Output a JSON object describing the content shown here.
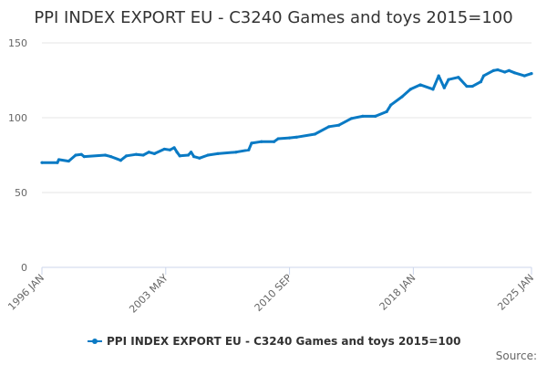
{
  "chart_data": {
    "type": "line",
    "title": "PPI INDEX EXPORT EU - C3240 Games and toys 2015=100",
    "xlabel": "",
    "ylabel": "",
    "ylim": [
      0,
      150
    ],
    "yticks": [
      0,
      50,
      100,
      150
    ],
    "xlim": [
      "1996-01",
      "2025-01"
    ],
    "xticks": [
      {
        "date": "1996-01",
        "label": "1996 JAN"
      },
      {
        "date": "2003-05",
        "label": "2003 MAY"
      },
      {
        "date": "2010-09",
        "label": "2010 SEP"
      },
      {
        "date": "2018-01",
        "label": "2018 JAN"
      },
      {
        "date": "2025-01",
        "label": "2025 JAN"
      }
    ],
    "grid": true,
    "legend_position": "bottom",
    "series": [
      {
        "name": "PPI INDEX EXPORT EU - C3240 Games and toys 2015=100",
        "color": "#0a7ac4",
        "points": [
          [
            "1996-01",
            70
          ],
          [
            "1996-12",
            70
          ],
          [
            "1997-01",
            72
          ],
          [
            "1997-08",
            71
          ],
          [
            "1998-01",
            75
          ],
          [
            "1998-05",
            75.5
          ],
          [
            "1998-07",
            74
          ],
          [
            "1999-10",
            75
          ],
          [
            "2000-02",
            74
          ],
          [
            "2000-09",
            71.5
          ],
          [
            "2001-01",
            74.5
          ],
          [
            "2001-08",
            75.5
          ],
          [
            "2002-01",
            75
          ],
          [
            "2002-05",
            77
          ],
          [
            "2002-09",
            76
          ],
          [
            "2003-04",
            79
          ],
          [
            "2003-08",
            78.5
          ],
          [
            "2003-11",
            80
          ],
          [
            "2004-01",
            77
          ],
          [
            "2004-03",
            74.5
          ],
          [
            "2004-09",
            75
          ],
          [
            "2004-11",
            77
          ],
          [
            "2005-01",
            74
          ],
          [
            "2005-05",
            73
          ],
          [
            "2005-11",
            75
          ],
          [
            "2006-06",
            76
          ],
          [
            "2007-07",
            77
          ],
          [
            "2008-04",
            78.5
          ],
          [
            "2008-06",
            83
          ],
          [
            "2009-01",
            84
          ],
          [
            "2009-10",
            84
          ],
          [
            "2010-01",
            86
          ],
          [
            "2010-09",
            86.5
          ],
          [
            "2011-02",
            87
          ],
          [
            "2012-03",
            89
          ],
          [
            "2013-01",
            94
          ],
          [
            "2013-08",
            95
          ],
          [
            "2014-05",
            99.5
          ],
          [
            "2015-01",
            101
          ],
          [
            "2015-10",
            101
          ],
          [
            "2016-06",
            104
          ],
          [
            "2016-09",
            108.5
          ],
          [
            "2017-05",
            114
          ],
          [
            "2017-11",
            119
          ],
          [
            "2018-06",
            122
          ],
          [
            "2019-03",
            119
          ],
          [
            "2019-07",
            128
          ],
          [
            "2019-11",
            120
          ],
          [
            "2020-02",
            125.5
          ],
          [
            "2020-09",
            127
          ],
          [
            "2021-03",
            121
          ],
          [
            "2021-07",
            121
          ],
          [
            "2022-01",
            124
          ],
          [
            "2022-03",
            128
          ],
          [
            "2022-10",
            131.5
          ],
          [
            "2023-01",
            132
          ],
          [
            "2023-06",
            130.5
          ],
          [
            "2023-09",
            131.5
          ],
          [
            "2024-01",
            130
          ],
          [
            "2024-08",
            128
          ],
          [
            "2025-01",
            129.5
          ]
        ]
      }
    ],
    "source_label": "Source:"
  }
}
